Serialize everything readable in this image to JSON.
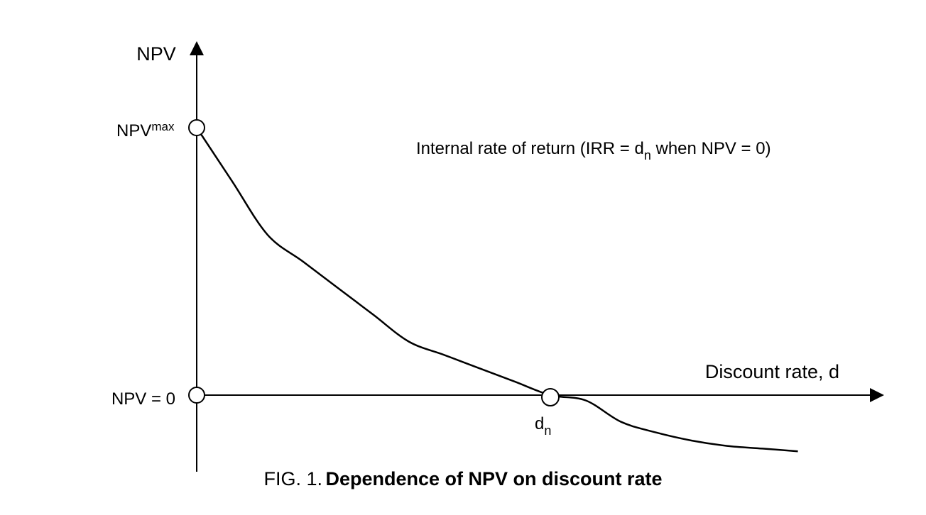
{
  "chart_data": {
    "type": "line",
    "title": "",
    "ylabel": "NPV",
    "xlabel": "Discount rate, d",
    "y_tick_labels": {
      "max": {
        "base": "NPV",
        "sup": "max"
      },
      "zero": "NPV = 0"
    },
    "x_tick_labels": {
      "dn": {
        "base": "d",
        "sub": "n"
      }
    },
    "annotation": {
      "before": "Internal rate of return (IRR = d",
      "sub": "n",
      "after": " when NPV =  0)"
    },
    "caption": {
      "prefix": "FIG. 1.",
      "title": "Dependence of NPV on discount rate"
    },
    "series": [
      {
        "x": [
          0,
          0.1,
          0.2,
          0.3,
          0.4,
          0.5,
          0.6,
          0.7,
          0.8,
          0.9,
          1.0,
          1.1,
          1.2,
          1.3,
          1.4,
          1.5,
          1.6,
          1.7
        ],
        "y": [
          1.0,
          0.8,
          0.6,
          0.5,
          0.4,
          0.3,
          0.2,
          0.15,
          0.1,
          0.05,
          0,
          -0.02,
          -0.1,
          -0.14,
          -0.17,
          -0.19,
          -0.2,
          -0.21
        ]
      }
    ],
    "curve_color": "#000000",
    "axis_color": "#000000",
    "grid": false
  }
}
